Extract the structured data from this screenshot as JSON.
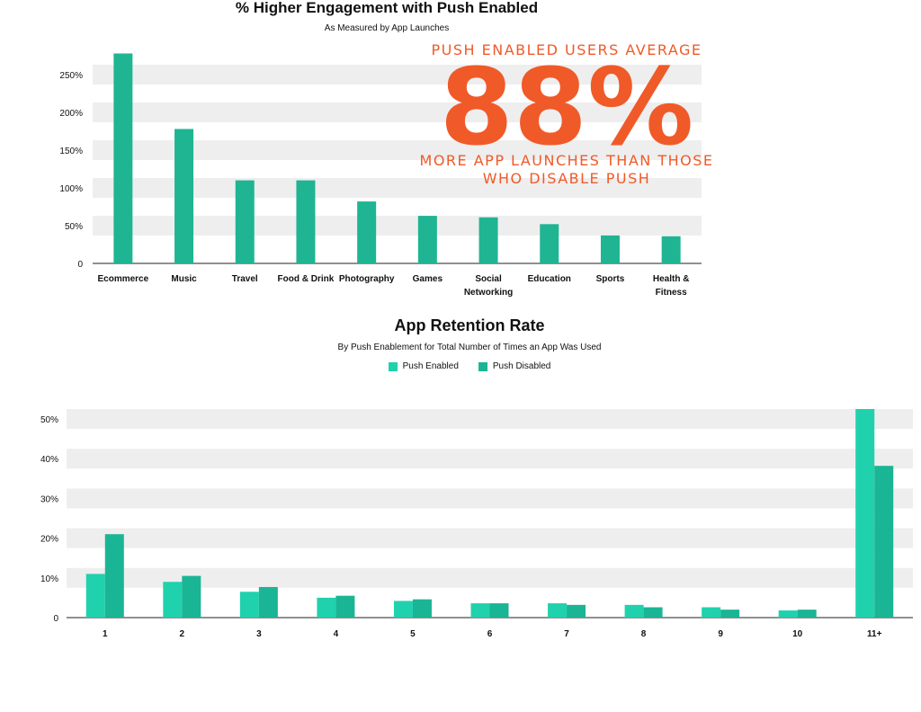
{
  "callout": {
    "line1": "PUSH ENABLED USERS AVERAGE",
    "big": "88%",
    "line2": "MORE APP LAUNCHES THAN THOSE",
    "line3": "WHO DISABLE PUSH"
  },
  "colors": {
    "bar": "#1fb592",
    "push_enabled": "#20d1ad",
    "push_disabled": "#1ab594",
    "grid_band": "#eeeeee",
    "callout": "#f05a28"
  },
  "chart_data": [
    {
      "type": "bar",
      "title": "% Higher Engagement with Push Enabled",
      "subtitle": "As Measured by App Launches",
      "categories": [
        "Ecommerce",
        "Music",
        "Travel",
        "Food & Drink",
        "Photography",
        "Games",
        "Social Networking",
        "Education",
        "Sports",
        "Health & Fitness"
      ],
      "category_lines": [
        [
          "Ecommerce"
        ],
        [
          "Music"
        ],
        [
          "Travel"
        ],
        [
          "Food & Drink"
        ],
        [
          "Photography"
        ],
        [
          "Games"
        ],
        [
          "Social",
          "Networking"
        ],
        [
          "Education"
        ],
        [
          "Sports"
        ],
        [
          "Health &",
          "Fitness"
        ]
      ],
      "values": [
        278,
        178,
        110,
        110,
        82,
        63,
        61,
        52,
        37,
        36
      ],
      "ylim": [
        0,
        275
      ],
      "yticks": [
        0,
        50,
        100,
        150,
        200,
        250
      ],
      "ytick_labels": [
        "0",
        "50%",
        "100%",
        "150%",
        "200%",
        "250%"
      ],
      "grid": true
    },
    {
      "type": "bar",
      "title": "App Retention Rate",
      "subtitle": "By Push Enablement for Total Number of Times an App Was Used",
      "categories": [
        "1",
        "2",
        "3",
        "4",
        "5",
        "6",
        "7",
        "8",
        "9",
        "10",
        "11+"
      ],
      "series": [
        {
          "name": "Push Enabled",
          "values": [
            11,
            9,
            6.5,
            5,
            4.2,
            3.6,
            3.6,
            3.2,
            2.6,
            1.8,
            52.5
          ]
        },
        {
          "name": "Push Disabled",
          "values": [
            21,
            10.5,
            7.7,
            5.5,
            4.6,
            3.6,
            3.2,
            2.6,
            2,
            2,
            38.2
          ]
        }
      ],
      "ylim": [
        0,
        52.5
      ],
      "yticks": [
        0,
        10,
        20,
        30,
        40,
        50
      ],
      "ytick_labels": [
        "0",
        "10%",
        "20%",
        "30%",
        "40%",
        "50%"
      ],
      "grid": true,
      "legend": "top-center"
    }
  ]
}
